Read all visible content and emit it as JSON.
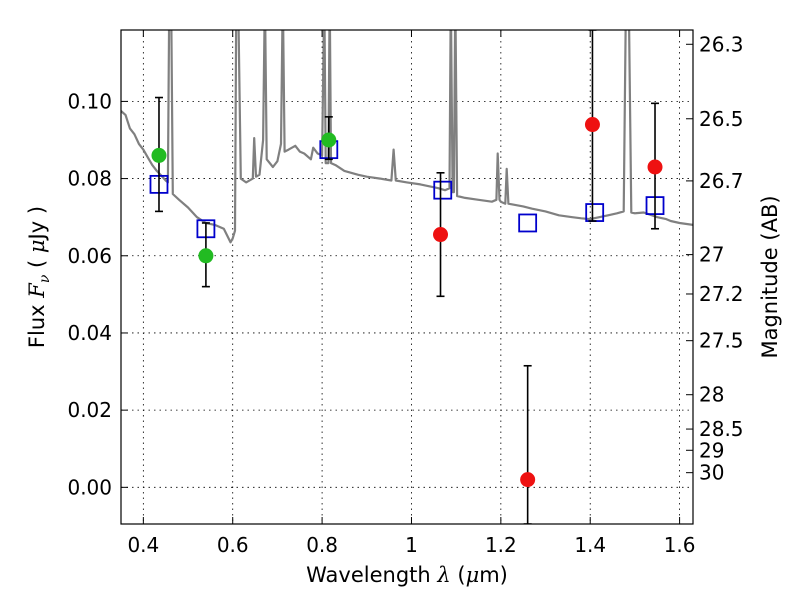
{
  "chart_data": {
    "type": "scatter",
    "xlabel": {
      "prefix": "Wavelength  ",
      "symbol": "λ",
      "open": " (",
      "unit_sym": "μ",
      "unit": "m)"
    },
    "ylabel": {
      "prefix": "Flux  ",
      "symbol": "F",
      "sub": "ν",
      "open": "  ( ",
      "unit_sym": "μ",
      "unit": "Jy )"
    },
    "y2label": "Magnitude (AB)",
    "xlim": [
      0.35,
      1.63
    ],
    "ylim": [
      -0.0095,
      0.1185
    ],
    "x_ticks": [
      0.4,
      0.6,
      0.8,
      1.0,
      1.2,
      1.4,
      1.6
    ],
    "x_tick_labels": [
      "0.4",
      "0.6",
      "0.8",
      "1",
      "1.2",
      "1.4",
      "1.6"
    ],
    "y_ticks": [
      0.0,
      0.02,
      0.04,
      0.06,
      0.08,
      0.1
    ],
    "y_tick_labels": [
      "0.00",
      "0.02",
      "0.04",
      "0.06",
      "0.08",
      "0.10"
    ],
    "y2_ticks": [
      {
        "label": "26.3",
        "flux": 0.1148
      },
      {
        "label": "26.5",
        "flux": 0.0955
      },
      {
        "label": "26.7",
        "flux": 0.0794
      },
      {
        "label": "27",
        "flux": 0.0603
      },
      {
        "label": "27.2",
        "flux": 0.0501
      },
      {
        "label": "27.5",
        "flux": 0.038
      },
      {
        "label": "28",
        "flux": 0.024
      },
      {
        "label": "28.5",
        "flux": 0.0151
      },
      {
        "label": "29",
        "flux": 0.0096
      },
      {
        "label": "30",
        "flux": 0.0038
      }
    ],
    "grid": true,
    "series": [
      {
        "kind": "model-spectrum-line",
        "color": "#808080",
        "points": [
          [
            0.35,
            0.0975
          ],
          [
            0.36,
            0.0965
          ],
          [
            0.37,
            0.093
          ],
          [
            0.38,
            0.0915
          ],
          [
            0.39,
            0.089
          ],
          [
            0.4,
            0.0875
          ],
          [
            0.41,
            0.0855
          ],
          [
            0.42,
            0.0835
          ],
          [
            0.43,
            0.082
          ],
          [
            0.44,
            0.0808
          ],
          [
            0.45,
            0.0795
          ],
          [
            0.455,
            0.079
          ],
          [
            0.458,
            0.128
          ],
          [
            0.462,
            0.128
          ],
          [
            0.466,
            0.076
          ],
          [
            0.48,
            0.0745
          ],
          [
            0.5,
            0.0725
          ],
          [
            0.52,
            0.07
          ],
          [
            0.54,
            0.0685
          ],
          [
            0.56,
            0.068
          ],
          [
            0.58,
            0.067
          ],
          [
            0.595,
            0.0635
          ],
          [
            0.6,
            0.0645
          ],
          [
            0.605,
            0.0665
          ],
          [
            0.608,
            0.128
          ],
          [
            0.612,
            0.128
          ],
          [
            0.618,
            0.08
          ],
          [
            0.63,
            0.079
          ],
          [
            0.645,
            0.08
          ],
          [
            0.648,
            0.0905
          ],
          [
            0.652,
            0.0805
          ],
          [
            0.66,
            0.081
          ],
          [
            0.668,
            0.09
          ],
          [
            0.672,
            0.128
          ],
          [
            0.676,
            0.085
          ],
          [
            0.69,
            0.083
          ],
          [
            0.7,
            0.0845
          ],
          [
            0.708,
            0.089
          ],
          [
            0.712,
            0.128
          ],
          [
            0.716,
            0.087
          ],
          [
            0.725,
            0.0875
          ],
          [
            0.74,
            0.0885
          ],
          [
            0.75,
            0.087
          ],
          [
            0.76,
            0.0865
          ],
          [
            0.775,
            0.085
          ],
          [
            0.78,
            0.088
          ],
          [
            0.79,
            0.0865
          ],
          [
            0.8,
            0.086
          ],
          [
            0.805,
            0.128
          ],
          [
            0.808,
            0.084
          ],
          [
            0.814,
            0.084
          ],
          [
            0.817,
            0.128
          ],
          [
            0.82,
            0.084
          ],
          [
            0.83,
            0.0835
          ],
          [
            0.85,
            0.082
          ],
          [
            0.88,
            0.081
          ],
          [
            0.9,
            0.0805
          ],
          [
            0.93,
            0.08
          ],
          [
            0.955,
            0.0795
          ],
          [
            0.96,
            0.0875
          ],
          [
            0.965,
            0.0795
          ],
          [
            0.99,
            0.079
          ],
          [
            1.02,
            0.0785
          ],
          [
            1.04,
            0.078
          ],
          [
            1.06,
            0.0775
          ],
          [
            1.075,
            0.077
          ],
          [
            1.085,
            0.0775
          ],
          [
            1.088,
            0.128
          ],
          [
            1.092,
            0.0765
          ],
          [
            1.095,
            0.0765
          ],
          [
            1.098,
            0.128
          ],
          [
            1.102,
            0.0755
          ],
          [
            1.12,
            0.075
          ],
          [
            1.15,
            0.0745
          ],
          [
            1.18,
            0.074
          ],
          [
            1.19,
            0.0745
          ],
          [
            1.193,
            0.0865
          ],
          [
            1.197,
            0.0745
          ],
          [
            1.2,
            0.074
          ],
          [
            1.21,
            0.0735
          ],
          [
            1.213,
            0.0825
          ],
          [
            1.217,
            0.0735
          ],
          [
            1.25,
            0.0728
          ],
          [
            1.27,
            0.0722
          ],
          [
            1.3,
            0.0715
          ],
          [
            1.33,
            0.0705
          ],
          [
            1.36,
            0.07
          ],
          [
            1.38,
            0.0697
          ],
          [
            1.4,
            0.0695
          ],
          [
            1.42,
            0.07
          ],
          [
            1.44,
            0.0705
          ],
          [
            1.46,
            0.071
          ],
          [
            1.475,
            0.0715
          ],
          [
            1.48,
            0.128
          ],
          [
            1.486,
            0.128
          ],
          [
            1.492,
            0.0712
          ],
          [
            1.5,
            0.071
          ],
          [
            1.52,
            0.0712
          ],
          [
            1.55,
            0.07
          ],
          [
            1.57,
            0.0695
          ],
          [
            1.58,
            0.069
          ],
          [
            1.6,
            0.0685
          ],
          [
            1.63,
            0.068
          ]
        ]
      },
      {
        "kind": "model-band-squares",
        "color": "#0000cc",
        "points": [
          {
            "x": 0.435,
            "y": 0.0785
          },
          {
            "x": 0.54,
            "y": 0.067
          },
          {
            "x": 0.815,
            "y": 0.0875
          },
          {
            "x": 1.07,
            "y": 0.077
          },
          {
            "x": 1.26,
            "y": 0.0685
          },
          {
            "x": 1.41,
            "y": 0.0712
          },
          {
            "x": 1.545,
            "y": 0.073
          }
        ]
      },
      {
        "kind": "observed-green",
        "color": "#22bb22",
        "points": [
          {
            "x": 0.435,
            "y": 0.086,
            "lo": 0.0715,
            "hi": 0.101
          },
          {
            "x": 0.54,
            "y": 0.06,
            "lo": 0.052,
            "hi": 0.0685
          },
          {
            "x": 0.815,
            "y": 0.09,
            "lo": 0.085,
            "hi": 0.096
          }
        ]
      },
      {
        "kind": "observed-red",
        "color": "#ee1111",
        "points": [
          {
            "x": 1.065,
            "y": 0.0655,
            "lo": 0.0495,
            "hi": 0.0815
          },
          {
            "x": 1.26,
            "y": 0.002,
            "lo": -0.0095,
            "hi": 0.0315
          },
          {
            "x": 1.405,
            "y": 0.094,
            "lo": 0.069,
            "hi": 0.1185
          },
          {
            "x": 1.545,
            "y": 0.083,
            "lo": 0.067,
            "hi": 0.0995
          }
        ]
      }
    ]
  }
}
